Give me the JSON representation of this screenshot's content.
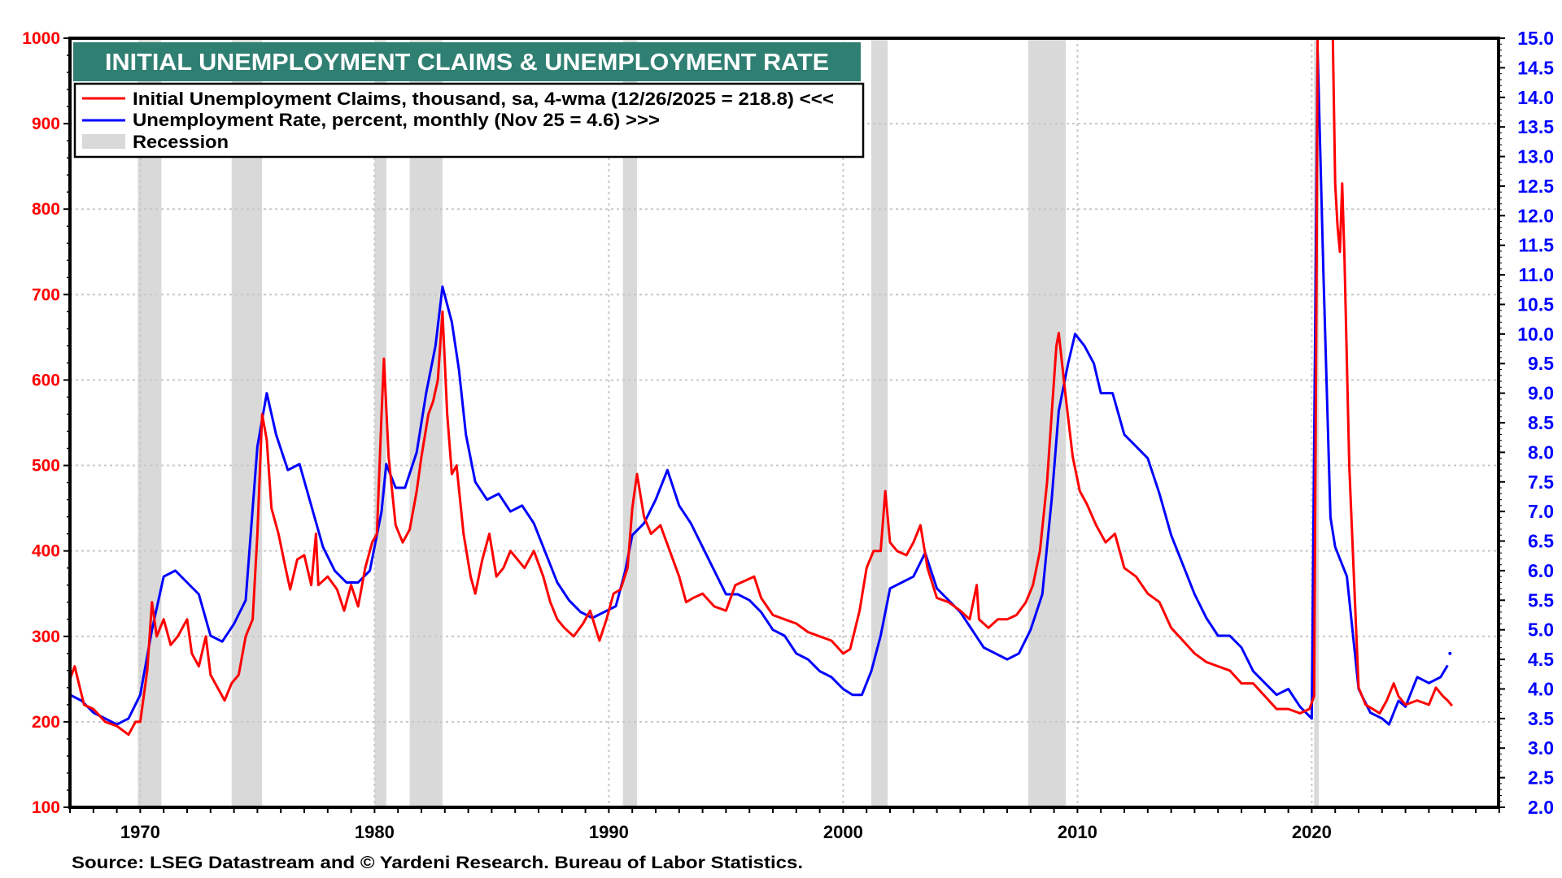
{
  "chart_data": {
    "type": "line",
    "title": "INITIAL UNEMPLOYMENT CLAIMS & UNEMPLOYMENT RATE",
    "source": "Source: LSEG Datastream and © Yardeni Research. Bureau of Labor Statistics.",
    "xlim": [
      1967,
      2028
    ],
    "x_ticks": [
      1970,
      1980,
      1990,
      2000,
      2010,
      2020
    ],
    "left_axis": {
      "label": "Initial Unemployment Claims, thousand",
      "ylim": [
        100,
        1000
      ],
      "ticks": [
        "100",
        "200",
        "300",
        "400",
        "500",
        "600",
        "700",
        "800",
        "900",
        "1000"
      ],
      "color": "#ff0000"
    },
    "right_axis": {
      "label": "Unemployment Rate, percent",
      "ylim": [
        2.0,
        15.0
      ],
      "ticks": [
        "2.0",
        "2.5",
        "3.0",
        "3.5",
        "4.0",
        "4.5",
        "5.0",
        "5.5",
        "6.0",
        "6.5",
        "7.0",
        "7.5",
        "8.0",
        "8.5",
        "9.0",
        "9.5",
        "10.0",
        "10.5",
        "11.0",
        "11.5",
        "12.0",
        "12.5",
        "13.0",
        "13.5",
        "14.0",
        "14.5",
        "15.0"
      ],
      "color": "#0000ff"
    },
    "grid": true,
    "legend": {
      "placement": "top-left",
      "entries": [
        {
          "label": "Initial Unemployment Claims, thousand,  sa, 4-wma (12/26/2025 = 218.8) <<<",
          "type": "line",
          "color": "#ff0000"
        },
        {
          "label": "Unemployment Rate, percent, monthly (Nov 25 = 4.6) >>>",
          "type": "line",
          "color": "#0000ff"
        },
        {
          "label": "Recession",
          "type": "band",
          "color": "#d9d9d9"
        }
      ]
    },
    "recessions": [
      [
        1969.9,
        1970.9
      ],
      [
        1973.9,
        1975.2
      ],
      [
        1980.0,
        1980.5
      ],
      [
        1981.5,
        1982.9
      ],
      [
        1990.6,
        1991.2
      ],
      [
        2001.2,
        2001.9
      ],
      [
        2007.9,
        2009.5
      ],
      [
        2020.1,
        2020.3
      ]
    ],
    "series": [
      {
        "name": "Initial Unemployment Claims",
        "axis": "left",
        "color": "#ff0000",
        "x": [
          1967.0,
          1967.2,
          1967.6,
          1968.0,
          1968.5,
          1969.0,
          1969.5,
          1969.8,
          1970.0,
          1970.3,
          1970.5,
          1970.7,
          1971.0,
          1971.3,
          1971.6,
          1972.0,
          1972.2,
          1972.5,
          1972.8,
          1973.0,
          1973.3,
          1973.6,
          1973.9,
          1974.2,
          1974.5,
          1974.8,
          1975.0,
          1975.2,
          1975.4,
          1975.6,
          1975.9,
          1976.2,
          1976.4,
          1976.7,
          1977.0,
          1977.3,
          1977.5,
          1977.6,
          1978.0,
          1978.4,
          1978.7,
          1979.0,
          1979.3,
          1979.6,
          1979.9,
          1980.1,
          1980.3,
          1980.4,
          1980.6,
          1980.9,
          1981.2,
          1981.5,
          1981.8,
          1982.0,
          1982.3,
          1982.5,
          1982.7,
          1982.9,
          1983.1,
          1983.3,
          1983.5,
          1983.8,
          1984.1,
          1984.3,
          1984.6,
          1984.9,
          1985.2,
          1985.5,
          1985.8,
          1986.1,
          1986.4,
          1986.8,
          1987.2,
          1987.5,
          1987.8,
          1988.1,
          1988.5,
          1988.9,
          1989.2,
          1989.6,
          1989.9,
          1990.2,
          1990.5,
          1990.8,
          1991.0,
          1991.2,
          1991.5,
          1991.8,
          1992.2,
          1992.6,
          1993.0,
          1993.3,
          1993.6,
          1994.0,
          1994.5,
          1995.0,
          1995.4,
          1995.8,
          1996.2,
          1996.5,
          1997.0,
          1997.5,
          1998.0,
          1998.5,
          1999.0,
          1999.5,
          2000.0,
          2000.3,
          2000.7,
          2001.0,
          2001.3,
          2001.6,
          2001.8,
          2002.0,
          2002.3,
          2002.7,
          2003.0,
          2003.3,
          2003.6,
          2004.0,
          2004.5,
          2005.0,
          2005.4,
          2005.7,
          2005.8,
          2006.2,
          2006.6,
          2007.0,
          2007.4,
          2007.8,
          2008.1,
          2008.4,
          2008.7,
          2008.9,
          2009.1,
          2009.2,
          2009.5,
          2009.8,
          2010.1,
          2010.4,
          2010.8,
          2011.2,
          2011.6,
          2012.0,
          2012.5,
          2013.0,
          2013.5,
          2014.0,
          2014.5,
          2015.0,
          2015.5,
          2016.0,
          2016.5,
          2017.0,
          2017.5,
          2018.0,
          2018.5,
          2019.0,
          2019.5,
          2019.9,
          2020.1,
          2020.2,
          2020.25,
          2020.9,
          2021.0,
          2021.1,
          2021.2,
          2021.3,
          2021.4,
          2021.6,
          2021.8,
          2022.0,
          2022.3,
          2022.6,
          2022.9,
          2023.2,
          2023.5,
          2023.7,
          2024.0,
          2024.5,
          2025.0,
          2025.3,
          2025.6,
          2025.8,
          2025.99
        ],
        "values": [
          250,
          265,
          220,
          215,
          200,
          195,
          185,
          200,
          200,
          260,
          340,
          300,
          320,
          290,
          300,
          320,
          280,
          265,
          300,
          255,
          240,
          225,
          245,
          255,
          300,
          320,
          420,
          560,
          530,
          450,
          420,
          380,
          355,
          390,
          395,
          360,
          420,
          360,
          370,
          355,
          330,
          360,
          335,
          380,
          410,
          420,
          560,
          625,
          510,
          430,
          410,
          425,
          470,
          510,
          560,
          575,
          600,
          680,
          560,
          490,
          500,
          420,
          370,
          350,
          390,
          420,
          370,
          380,
          400,
          390,
          380,
          400,
          370,
          340,
          320,
          310,
          300,
          315,
          330,
          295,
          320,
          350,
          355,
          380,
          450,
          490,
          440,
          420,
          430,
          400,
          370,
          340,
          345,
          350,
          335,
          330,
          360,
          365,
          370,
          345,
          325,
          320,
          315,
          305,
          300,
          295,
          280,
          285,
          330,
          380,
          400,
          400,
          470,
          410,
          400,
          395,
          410,
          430,
          380,
          345,
          340,
          330,
          320,
          360,
          320,
          310,
          320,
          320,
          325,
          340,
          360,
          400,
          480,
          560,
          640,
          655,
          580,
          510,
          470,
          455,
          430,
          410,
          420,
          380,
          370,
          350,
          340,
          310,
          295,
          280,
          270,
          265,
          260,
          245,
          245,
          230,
          215,
          215,
          210,
          215,
          230,
          700,
          1000,
          1000,
          830,
          780,
          750,
          830,
          740,
          500,
          370,
          240,
          220,
          215,
          210,
          225,
          245,
          230,
          220,
          225,
          220,
          240,
          230,
          225,
          218.8
        ]
      },
      {
        "name": "Unemployment Rate",
        "axis": "right",
        "color": "#0000ff",
        "x": [
          1967.0,
          1967.5,
          1968.0,
          1968.5,
          1969.0,
          1969.5,
          1970.0,
          1970.5,
          1971.0,
          1971.5,
          1972.0,
          1972.5,
          1973.0,
          1973.5,
          1974.0,
          1974.5,
          1975.0,
          1975.4,
          1975.8,
          1976.3,
          1976.8,
          1977.3,
          1977.8,
          1978.3,
          1978.8,
          1979.3,
          1979.8,
          1980.3,
          1980.5,
          1980.9,
          1981.3,
          1981.8,
          1982.2,
          1982.6,
          1982.9,
          1983.3,
          1983.6,
          1983.9,
          1984.3,
          1984.8,
          1985.3,
          1985.8,
          1986.3,
          1986.8,
          1987.3,
          1987.8,
          1988.3,
          1988.8,
          1989.3,
          1989.8,
          1990.3,
          1990.7,
          1991.0,
          1991.5,
          1992.0,
          1992.5,
          1993.0,
          1993.5,
          1994.0,
          1994.5,
          1995.0,
          1995.5,
          1996.0,
          1996.5,
          1997.0,
          1997.5,
          1998.0,
          1998.5,
          1999.0,
          1999.5,
          2000.0,
          2000.4,
          2000.8,
          2001.2,
          2001.6,
          2002.0,
          2002.5,
          2003.0,
          2003.5,
          2004.0,
          2004.5,
          2005.0,
          2005.5,
          2006.0,
          2006.5,
          2007.0,
          2007.5,
          2008.0,
          2008.5,
          2008.9,
          2009.2,
          2009.6,
          2009.9,
          2010.3,
          2010.7,
          2011.0,
          2011.5,
          2012.0,
          2012.5,
          2013.0,
          2013.5,
          2014.0,
          2014.5,
          2015.0,
          2015.5,
          2016.0,
          2016.5,
          2017.0,
          2017.5,
          2018.0,
          2018.5,
          2019.0,
          2019.5,
          2020.0,
          2020.25,
          2020.5,
          2020.8,
          2021.0,
          2021.5,
          2022.0,
          2022.5,
          2023.0,
          2023.3,
          2023.7,
          2024.0,
          2024.5,
          2025.0,
          2025.5,
          2025.8
        ],
        "values": [
          3.9,
          3.8,
          3.6,
          3.5,
          3.4,
          3.5,
          3.9,
          5.0,
          5.9,
          6.0,
          5.8,
          5.6,
          4.9,
          4.8,
          5.1,
          5.5,
          8.1,
          9.0,
          8.3,
          7.7,
          7.8,
          7.1,
          6.4,
          6.0,
          5.8,
          5.8,
          6.0,
          7.0,
          7.8,
          7.4,
          7.4,
          8.0,
          9.0,
          9.8,
          10.8,
          10.2,
          9.4,
          8.3,
          7.5,
          7.2,
          7.3,
          7.0,
          7.1,
          6.8,
          6.3,
          5.8,
          5.5,
          5.3,
          5.2,
          5.3,
          5.4,
          6.0,
          6.6,
          6.8,
          7.2,
          7.7,
          7.1,
          6.8,
          6.4,
          6.0,
          5.6,
          5.6,
          5.5,
          5.3,
          5.0,
          4.9,
          4.6,
          4.5,
          4.3,
          4.2,
          4.0,
          3.9,
          3.9,
          4.3,
          4.9,
          5.7,
          5.8,
          5.9,
          6.3,
          5.7,
          5.5,
          5.3,
          5.0,
          4.7,
          4.6,
          4.5,
          4.6,
          5.0,
          5.6,
          7.2,
          8.7,
          9.5,
          10.0,
          9.8,
          9.5,
          9.0,
          9.0,
          8.3,
          8.1,
          7.9,
          7.3,
          6.6,
          6.1,
          5.6,
          5.2,
          4.9,
          4.9,
          4.7,
          4.3,
          4.1,
          3.9,
          4.0,
          3.7,
          3.5,
          14.8,
          11.0,
          6.9,
          6.4,
          5.9,
          4.0,
          3.6,
          3.5,
          3.4,
          3.8,
          3.7,
          4.2,
          4.1,
          4.2,
          4.4
        ],
        "last_point": {
          "x": 2025.9,
          "value": 4.6
        }
      }
    ]
  }
}
